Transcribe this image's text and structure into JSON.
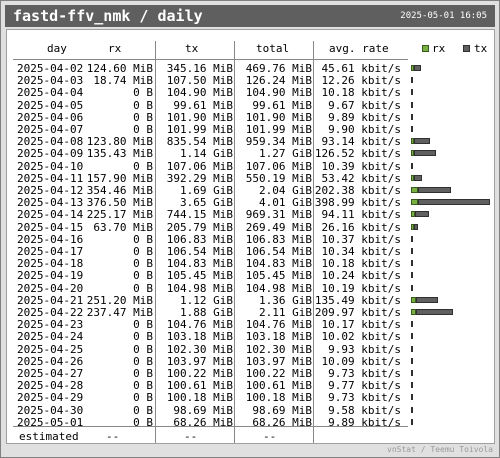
{
  "window": {
    "title": "fastd-ffv_nmk / daily",
    "datetime": "2025-05-01 16:05"
  },
  "columns": {
    "day": "day",
    "rx": "rx",
    "tx": "tx",
    "total": "total",
    "avg_rate": "avg. rate"
  },
  "legend": {
    "rx_label": "rx",
    "tx_label": "tx"
  },
  "colors": {
    "rx": "#77b040",
    "tx": "#606060",
    "titlebar": "#5f5f5f"
  },
  "rows": [
    {
      "day": "2025-04-02",
      "rx": "124.60 MiB",
      "tx": "345.16 MiB",
      "total": "469.76 MiB",
      "rate": "45.61 kbit/s"
    },
    {
      "day": "2025-04-03",
      "rx": "18.74 MiB",
      "tx": "107.50 MiB",
      "total": "126.24 MiB",
      "rate": "12.26 kbit/s"
    },
    {
      "day": "2025-04-04",
      "rx": "0 B",
      "tx": "104.90 MiB",
      "total": "104.90 MiB",
      "rate": "10.18 kbit/s"
    },
    {
      "day": "2025-04-05",
      "rx": "0 B",
      "tx": "99.61 MiB",
      "total": "99.61 MiB",
      "rate": "9.67 kbit/s"
    },
    {
      "day": "2025-04-06",
      "rx": "0 B",
      "tx": "101.90 MiB",
      "total": "101.90 MiB",
      "rate": "9.89 kbit/s"
    },
    {
      "day": "2025-04-07",
      "rx": "0 B",
      "tx": "101.99 MiB",
      "total": "101.99 MiB",
      "rate": "9.90 kbit/s"
    },
    {
      "day": "2025-04-08",
      "rx": "123.80 MiB",
      "tx": "835.54 MiB",
      "total": "959.34 MiB",
      "rate": "93.14 kbit/s"
    },
    {
      "day": "2025-04-09",
      "rx": "135.43 MiB",
      "tx": "1.14 GiB",
      "total": "1.27 GiB",
      "rate": "126.52 kbit/s"
    },
    {
      "day": "2025-04-10",
      "rx": "0 B",
      "tx": "107.06 MiB",
      "total": "107.06 MiB",
      "rate": "10.39 kbit/s"
    },
    {
      "day": "2025-04-11",
      "rx": "157.90 MiB",
      "tx": "392.29 MiB",
      "total": "550.19 MiB",
      "rate": "53.42 kbit/s"
    },
    {
      "day": "2025-04-12",
      "rx": "354.46 MiB",
      "tx": "1.69 GiB",
      "total": "2.04 GiB",
      "rate": "202.38 kbit/s"
    },
    {
      "day": "2025-04-13",
      "rx": "376.50 MiB",
      "tx": "3.65 GiB",
      "total": "4.01 GiB",
      "rate": "398.99 kbit/s"
    },
    {
      "day": "2025-04-14",
      "rx": "225.17 MiB",
      "tx": "744.15 MiB",
      "total": "969.31 MiB",
      "rate": "94.11 kbit/s"
    },
    {
      "day": "2025-04-15",
      "rx": "63.70 MiB",
      "tx": "205.79 MiB",
      "total": "269.49 MiB",
      "rate": "26.16 kbit/s"
    },
    {
      "day": "2025-04-16",
      "rx": "0 B",
      "tx": "106.83 MiB",
      "total": "106.83 MiB",
      "rate": "10.37 kbit/s"
    },
    {
      "day": "2025-04-17",
      "rx": "0 B",
      "tx": "106.54 MiB",
      "total": "106.54 MiB",
      "rate": "10.34 kbit/s"
    },
    {
      "day": "2025-04-18",
      "rx": "0 B",
      "tx": "104.83 MiB",
      "total": "104.83 MiB",
      "rate": "10.18 kbit/s"
    },
    {
      "day": "2025-04-19",
      "rx": "0 B",
      "tx": "105.45 MiB",
      "total": "105.45 MiB",
      "rate": "10.24 kbit/s"
    },
    {
      "day": "2025-04-20",
      "rx": "0 B",
      "tx": "104.98 MiB",
      "total": "104.98 MiB",
      "rate": "10.19 kbit/s"
    },
    {
      "day": "2025-04-21",
      "rx": "251.20 MiB",
      "tx": "1.12 GiB",
      "total": "1.36 GiB",
      "rate": "135.49 kbit/s"
    },
    {
      "day": "2025-04-22",
      "rx": "237.47 MiB",
      "tx": "1.88 GiB",
      "total": "2.11 GiB",
      "rate": "209.97 kbit/s"
    },
    {
      "day": "2025-04-23",
      "rx": "0 B",
      "tx": "104.76 MiB",
      "total": "104.76 MiB",
      "rate": "10.17 kbit/s"
    },
    {
      "day": "2025-04-24",
      "rx": "0 B",
      "tx": "103.18 MiB",
      "total": "103.18 MiB",
      "rate": "10.02 kbit/s"
    },
    {
      "day": "2025-04-25",
      "rx": "0 B",
      "tx": "102.30 MiB",
      "total": "102.30 MiB",
      "rate": "9.93 kbit/s"
    },
    {
      "day": "2025-04-26",
      "rx": "0 B",
      "tx": "103.97 MiB",
      "total": "103.97 MiB",
      "rate": "10.09 kbit/s"
    },
    {
      "day": "2025-04-27",
      "rx": "0 B",
      "tx": "100.22 MiB",
      "total": "100.22 MiB",
      "rate": "9.73 kbit/s"
    },
    {
      "day": "2025-04-28",
      "rx": "0 B",
      "tx": "100.61 MiB",
      "total": "100.61 MiB",
      "rate": "9.77 kbit/s"
    },
    {
      "day": "2025-04-29",
      "rx": "0 B",
      "tx": "100.18 MiB",
      "total": "100.18 MiB",
      "rate": "9.73 kbit/s"
    },
    {
      "day": "2025-04-30",
      "rx": "0 B",
      "tx": "98.69 MiB",
      "total": "98.69 MiB",
      "rate": "9.58 kbit/s"
    },
    {
      "day": "2025-05-01",
      "rx": "0 B",
      "tx": "68.26 MiB",
      "total": "68.26 MiB",
      "rate": "9.89 kbit/s"
    }
  ],
  "estimated": {
    "label": "estimated",
    "rx": "--",
    "tx": "--",
    "total": "--"
  },
  "footer": "vnStat / Teemu Toivola"
}
